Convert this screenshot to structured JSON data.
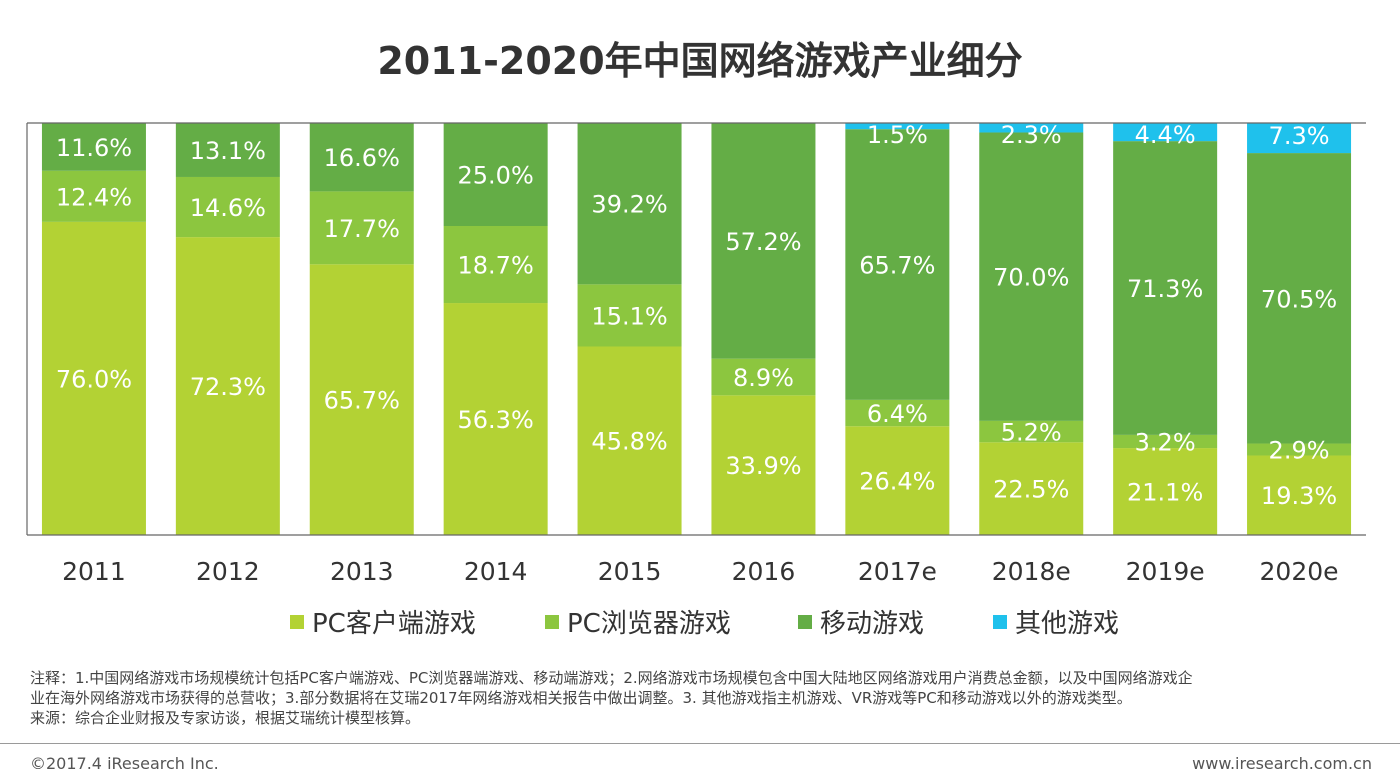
{
  "colors": {
    "pc_client": "#b3d234",
    "pc_browser": "#8cc63f",
    "mobile": "#64ad46",
    "other": "#1fc1ec",
    "axis": "#666666",
    "label": "#ffffff",
    "tick": "#333333"
  },
  "footer": {
    "note_line1": "注释：1.中国网络游戏市场规模统计包括PC客户端游戏、PC浏览器端游戏、移动端游戏；2.网络游戏市场规模包含中国大陆地区网络游戏用户消费总金额，以及中国网络游戏企",
    "note_line2": "业在海外网络游戏市场获得的总营收；3.部分数据将在艾瑞2017年网络游戏相关报告中做出调整。3. 其他游戏指主机游戏、VR游戏等PC和移动游戏以外的游戏类型。",
    "source": "来源：综合企业财报及专家访谈，根据艾瑞统计模型核算。",
    "copyright": "©2017.4 iResearch Inc.",
    "website": "www.iresearch.com.cn"
  },
  "chart_data": {
    "type": "bar",
    "stacked": true,
    "percent_stacked": true,
    "title": "2011-2020年中国网络游戏产业细分",
    "categories": [
      "2011",
      "2012",
      "2013",
      "2014",
      "2015",
      "2016",
      "2017e",
      "2018e",
      "2019e",
      "2020e"
    ],
    "series": [
      {
        "name": "PC客户端游戏",
        "color": "#b3d234",
        "values": [
          76.0,
          72.3,
          65.7,
          56.3,
          45.8,
          33.9,
          26.4,
          22.5,
          21.1,
          19.3
        ],
        "labels": [
          "76.0%",
          "72.3%",
          "65.7%",
          "56.3%",
          "45.8%",
          "33.9%",
          "26.4%",
          "22.5%",
          "21.1%",
          "19.3%"
        ]
      },
      {
        "name": "PC浏览器游戏",
        "color": "#8cc63f",
        "values": [
          12.4,
          14.6,
          17.7,
          18.7,
          15.1,
          8.9,
          6.4,
          5.2,
          3.2,
          2.9
        ],
        "labels": [
          "12.4%",
          "14.6%",
          "17.7%",
          "18.7%",
          "15.1%",
          "8.9%",
          "6.4%",
          "5.2%",
          "3.2%",
          "2.9%"
        ]
      },
      {
        "name": "移动游戏",
        "color": "#64ad46",
        "values": [
          11.6,
          13.1,
          16.6,
          25.0,
          39.2,
          57.2,
          65.7,
          70.0,
          71.3,
          70.5
        ],
        "labels": [
          "11.6%",
          "13.1%",
          "16.6%",
          "25.0%",
          "39.2%",
          "57.2%",
          "65.7%",
          "70.0%",
          "71.3%",
          "70.5%"
        ]
      },
      {
        "name": "其他游戏",
        "color": "#1fc1ec",
        "values": [
          0,
          0,
          0,
          0,
          0,
          0,
          1.5,
          2.3,
          4.4,
          7.3
        ],
        "labels": [
          "",
          "",
          "",
          "",
          "",
          "",
          "1.5%",
          "2.3%",
          "4.4%",
          "7.3%"
        ]
      }
    ],
    "ylim": [
      0,
      100
    ],
    "legend_position": "bottom",
    "grid": false
  }
}
